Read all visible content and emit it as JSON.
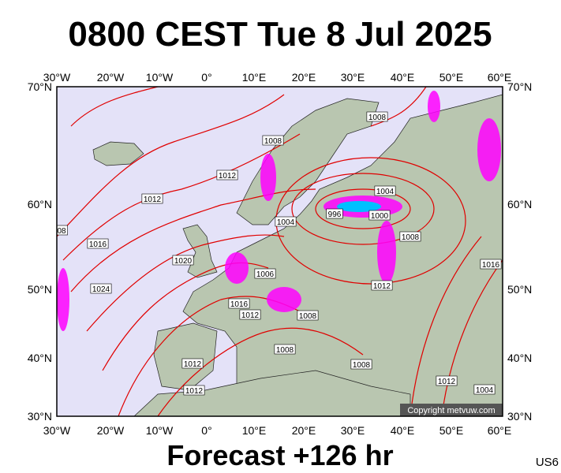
{
  "header": {
    "title": "0800 CEST Tue 8 Jul 2025"
  },
  "map": {
    "lon_labels": [
      "30°W",
      "20°W",
      "10°W",
      "0°",
      "10°E",
      "20°E",
      "30°E",
      "40°E",
      "50°E",
      "60°E"
    ],
    "lat_labels": [
      "70°N",
      "60°N",
      "50°N",
      "40°N",
      "30°N"
    ],
    "isobar_labels": [
      "1008",
      "1008",
      "1012",
      "1012",
      "1004",
      "996",
      "1000",
      "1004",
      "08",
      "1016",
      "1008",
      "1020",
      "1006",
      "1016",
      "1024",
      "1012",
      "1016",
      "1012",
      "1008",
      "1008",
      "1008",
      "1012",
      "1012",
      "1012",
      "1004"
    ],
    "copyright": "Copyright metvuw.com"
  },
  "footer": {
    "forecast": "Forecast +126 hr",
    "code": "US6"
  }
}
